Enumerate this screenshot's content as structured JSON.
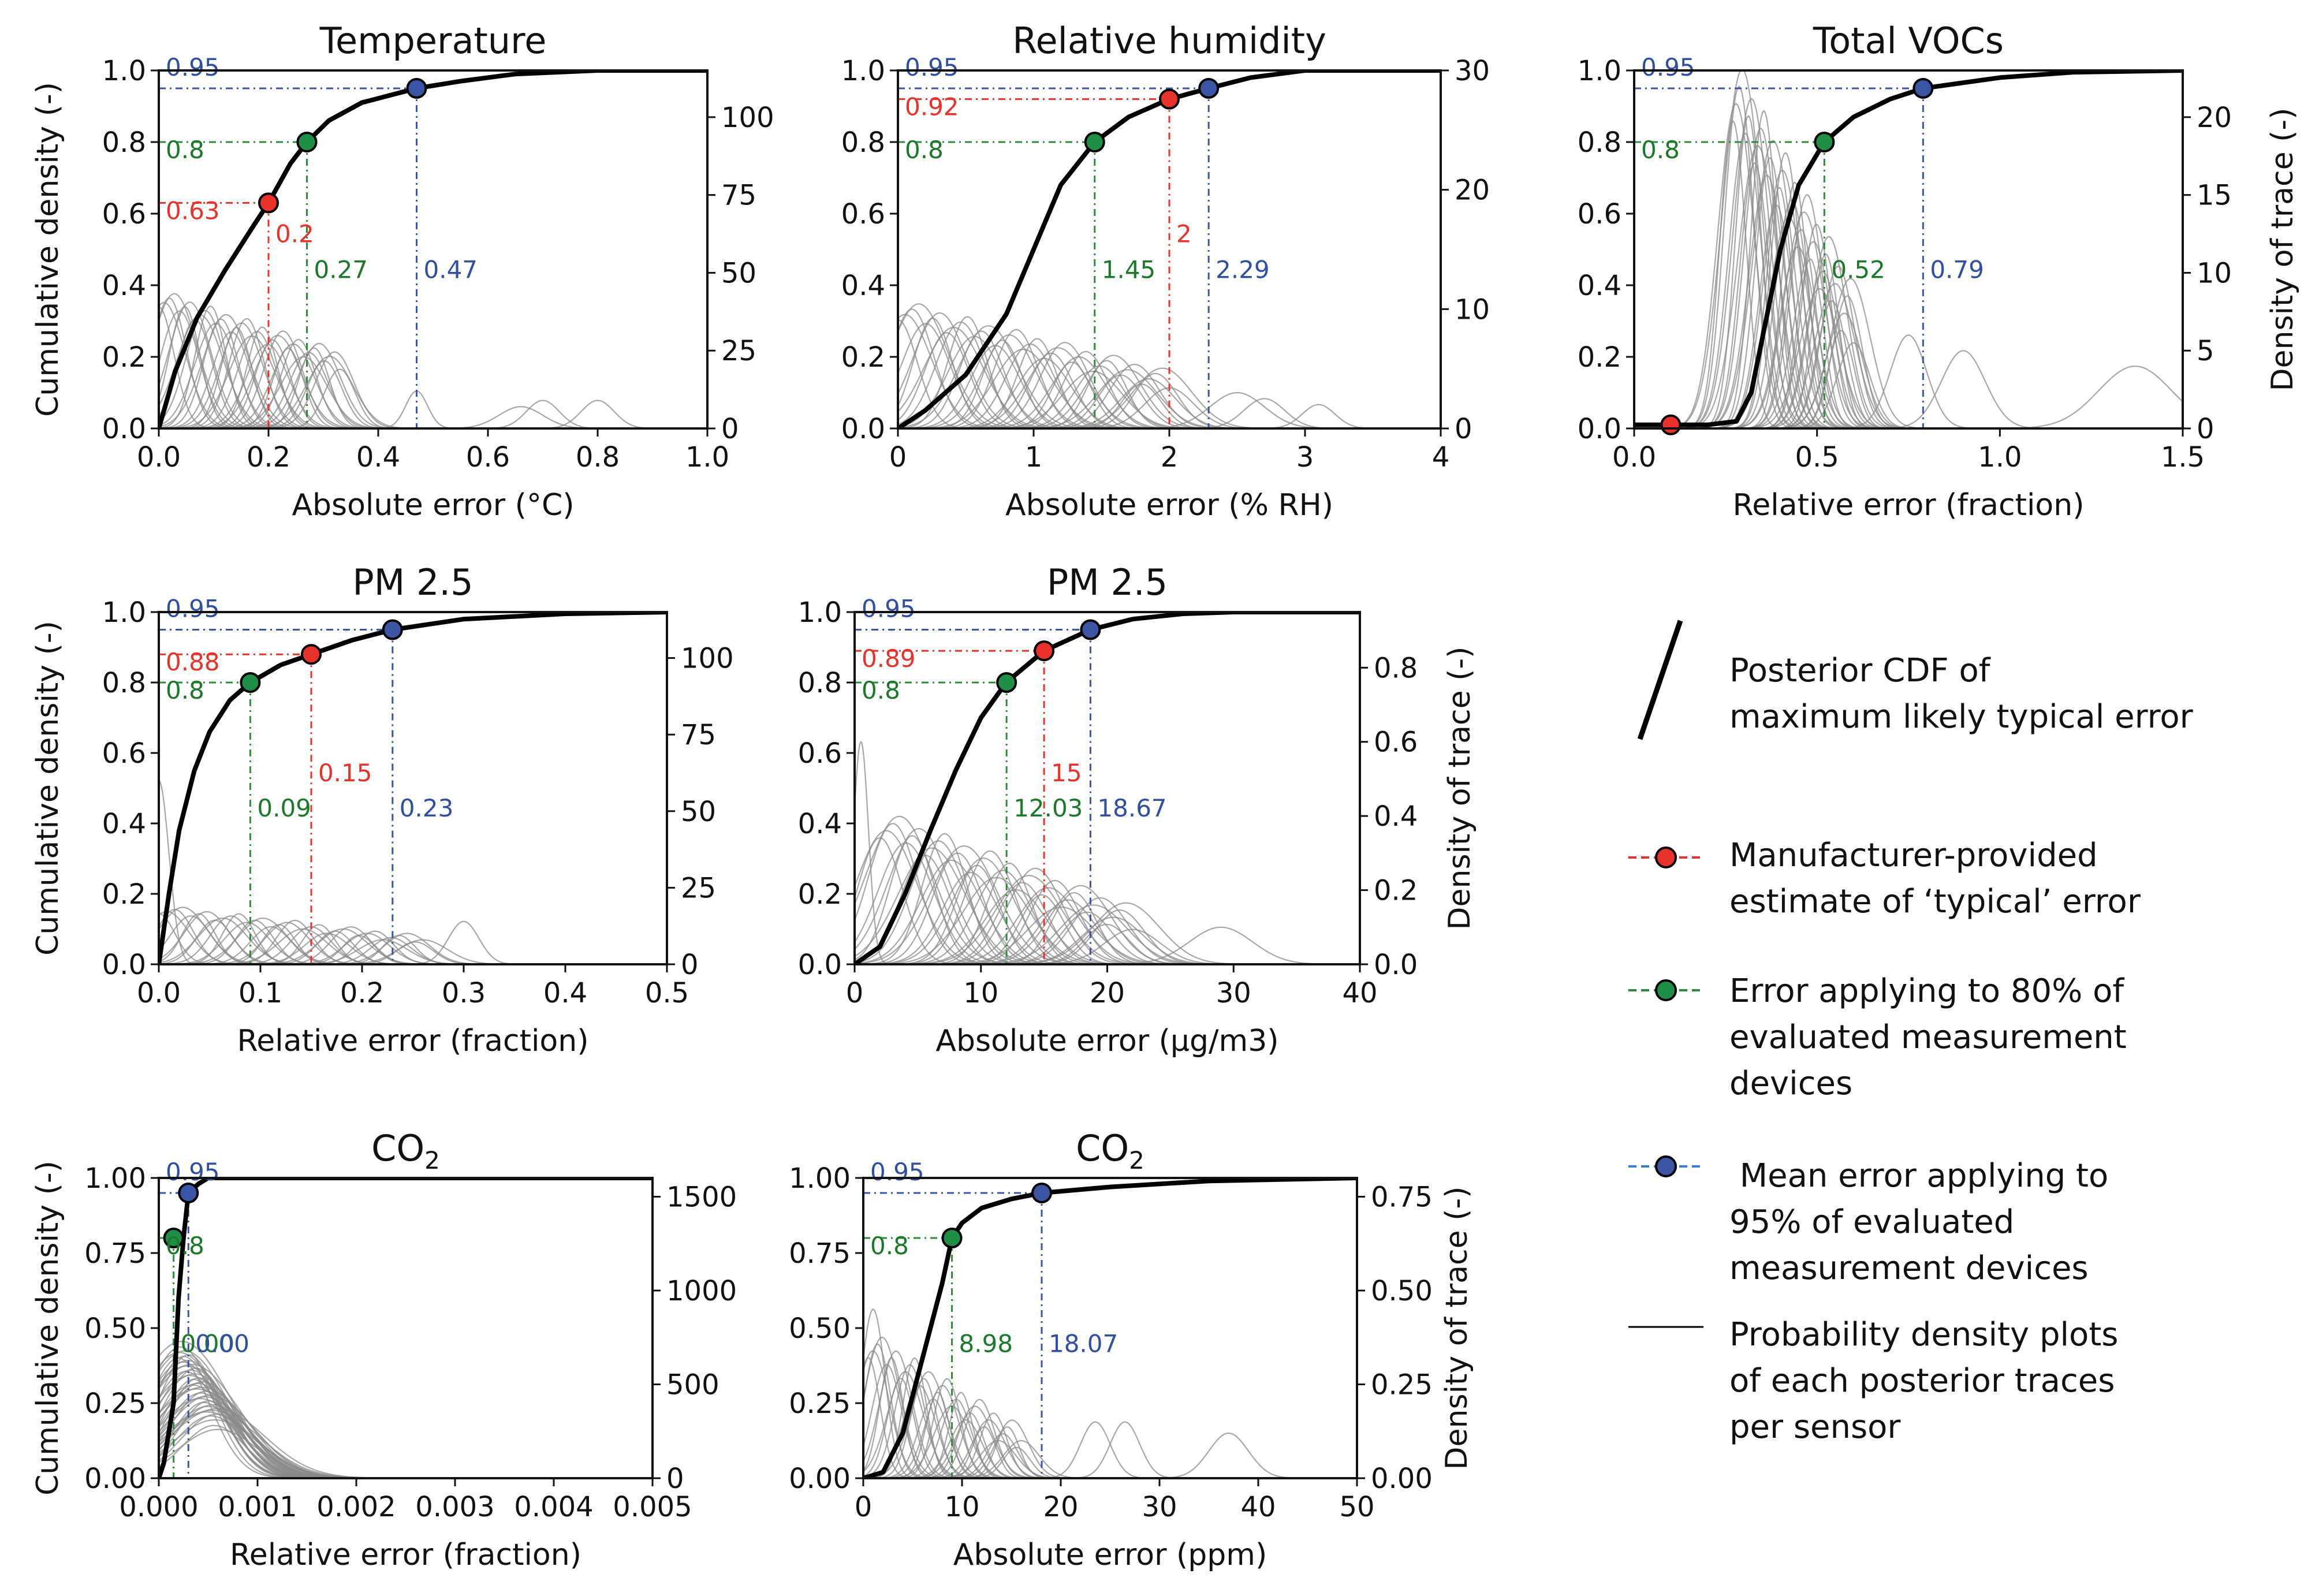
{
  "colors": {
    "manufacturer": "#e8322a",
    "green": "#2e8b3c",
    "blue": "#3a55a4",
    "cdf": "#000000",
    "trace": "#8a8a8a",
    "green_text": "#1a7a2a",
    "blue_text": "#2f4fa0",
    "red_text": "#e8322a"
  },
  "legend": {
    "cdf": "Posterior CDF of maximum likely typical error",
    "cdf_lines": [
      "Posterior CDF of",
      "maximum likely typical error"
    ],
    "manufacturer_lines": [
      "Manufacturer-provided",
      "estimate of ‘typical’ error"
    ],
    "green_lines": [
      "Error applying to 80% of",
      "evaluated measurement",
      "devices"
    ],
    "blue_lines": [
      " Mean error applying to",
      "95% of evaluated",
      "measurement devices"
    ],
    "trace_lines": [
      "Probability density plots",
      "of each posterior traces",
      "per sensor"
    ]
  },
  "chart_data": [
    {
      "type": "line",
      "title": "Temperature",
      "xlabel": "Absolute error (°C)",
      "ylabel": "Cumulative density (-)",
      "y2label": "",
      "xlim": [
        0,
        1.0
      ],
      "ylim": [
        0,
        1.0
      ],
      "y2lim": [
        0,
        115
      ],
      "xticks": [
        "0.0",
        "0.2",
        "0.4",
        "0.6",
        "0.8",
        "1.0"
      ],
      "yticks": [
        "0.0",
        "0.2",
        "0.4",
        "0.6",
        "0.8",
        "1.0"
      ],
      "y2ticks": [
        "0",
        "25",
        "50",
        "75",
        "100"
      ],
      "y2tickvals": [
        0,
        25,
        50,
        75,
        100
      ],
      "cdf": {
        "x": [
          0,
          0.03,
          0.07,
          0.12,
          0.17,
          0.2,
          0.24,
          0.27,
          0.31,
          0.37,
          0.42,
          0.47,
          0.55,
          0.65,
          0.8,
          1.0
        ],
        "y": [
          0,
          0.16,
          0.31,
          0.44,
          0.56,
          0.63,
          0.74,
          0.8,
          0.86,
          0.91,
          0.93,
          0.95,
          0.97,
          0.99,
          1.0,
          1.0
        ]
      },
      "markers": [
        {
          "kind": "manufacturer",
          "x": 0.2,
          "y": 0.63,
          "label_y": "0.63",
          "label_x": "0.2"
        },
        {
          "kind": "green",
          "x": 0.27,
          "y": 0.8,
          "label_y": "0.8",
          "label_x": "0.27"
        },
        {
          "kind": "blue",
          "x": 0.47,
          "y": 0.95,
          "label_y": "0.95",
          "label_x": "0.47"
        }
      ],
      "traces": {
        "n": 36,
        "x0": 0.0,
        "x1": 0.33,
        "sigma": 0.035,
        "hmax": 42,
        "hmin": 22
      },
      "extra_traces": [
        [
          0.47,
          12,
          0.02
        ],
        [
          0.66,
          7,
          0.04
        ],
        [
          0.7,
          9,
          0.03
        ],
        [
          0.8,
          9,
          0.03
        ]
      ]
    },
    {
      "type": "line",
      "title": "Relative humidity",
      "xlabel": "Absolute error (% RH)",
      "ylabel": "",
      "y2label": "",
      "xlim": [
        0,
        4
      ],
      "ylim": [
        0,
        1.0
      ],
      "y2lim": [
        0,
        30
      ],
      "xticks": [
        "0",
        "1",
        "2",
        "3",
        "4"
      ],
      "yticks": [
        "0.0",
        "0.2",
        "0.4",
        "0.6",
        "0.8",
        "1.0"
      ],
      "y2ticks": [
        "0",
        "10",
        "20",
        "30"
      ],
      "y2tickvals": [
        0,
        10,
        20,
        30
      ],
      "cdf": {
        "x": [
          0,
          0.2,
          0.5,
          0.8,
          1.0,
          1.2,
          1.45,
          1.7,
          2.0,
          2.29,
          2.6,
          3.0,
          4.0
        ],
        "y": [
          0,
          0.05,
          0.15,
          0.32,
          0.5,
          0.68,
          0.8,
          0.87,
          0.92,
          0.95,
          0.98,
          1.0,
          1.0
        ]
      },
      "markers": [
        {
          "kind": "manufacturer",
          "x": 2.0,
          "y": 0.92,
          "label_y": "0.92",
          "label_x": "2"
        },
        {
          "kind": "green",
          "x": 1.45,
          "y": 0.8,
          "label_y": "0.8",
          "label_x": "1.45"
        },
        {
          "kind": "blue",
          "x": 2.29,
          "y": 0.95,
          "label_y": "0.95",
          "label_x": "2.29"
        }
      ],
      "traces": {
        "n": 40,
        "x0": 0.0,
        "x1": 2.0,
        "sigma": 0.18,
        "hmax": 10,
        "hmin": 4
      },
      "extra_traces": [
        [
          2.5,
          3,
          0.2
        ],
        [
          2.7,
          2.5,
          0.15
        ],
        [
          3.1,
          2,
          0.12
        ]
      ]
    },
    {
      "type": "line",
      "title": "Total VOCs",
      "xlabel": "Relative error (fraction)",
      "ylabel": "",
      "y2label": "Density of trace (-)",
      "xlim": [
        0,
        1.5
      ],
      "ylim": [
        0,
        1.0
      ],
      "y2lim": [
        0,
        23
      ],
      "xticks": [
        "0.0",
        "0.5",
        "1.0",
        "1.5"
      ],
      "yticks": [
        "0.0",
        "0.2",
        "0.4",
        "0.6",
        "0.8",
        "1.0"
      ],
      "y2ticks": [
        "0",
        "5",
        "10",
        "15",
        "20"
      ],
      "y2tickvals": [
        0,
        5,
        10,
        15,
        20
      ],
      "cdf": {
        "x": [
          0,
          0.2,
          0.28,
          0.32,
          0.36,
          0.4,
          0.45,
          0.52,
          0.6,
          0.7,
          0.79,
          1.0,
          1.2,
          1.5
        ],
        "y": [
          0.01,
          0.01,
          0.02,
          0.1,
          0.3,
          0.5,
          0.68,
          0.8,
          0.87,
          0.92,
          0.95,
          0.98,
          0.995,
          1.0
        ]
      },
      "markers": [
        {
          "kind": "manufacturer",
          "x": 0.1,
          "y": 0.01,
          "label_y": "",
          "label_x": ""
        },
        {
          "kind": "green",
          "x": 0.52,
          "y": 0.8,
          "label_y": "0.8",
          "label_x": "0.52"
        },
        {
          "kind": "blue",
          "x": 0.79,
          "y": 0.95,
          "label_y": "0.95",
          "label_x": "0.79"
        }
      ],
      "traces": {
        "n": 40,
        "x0": 0.27,
        "x1": 0.6,
        "sigma": 0.045,
        "hmax": 22,
        "hmin": 7
      },
      "extra_traces": [
        [
          0.75,
          6,
          0.05
        ],
        [
          0.9,
          5,
          0.06
        ],
        [
          1.37,
          4,
          0.1
        ]
      ]
    },
    {
      "type": "line",
      "title": "PM 2.5",
      "xlabel": "Relative error (fraction)",
      "ylabel": "Cumulative density (-)",
      "y2label": "",
      "xlim": [
        0,
        0.5
      ],
      "ylim": [
        0,
        1.0
      ],
      "y2lim": [
        0,
        115
      ],
      "xticks": [
        "0.0",
        "0.1",
        "0.2",
        "0.3",
        "0.4",
        "0.5"
      ],
      "yticks": [
        "0.0",
        "0.2",
        "0.4",
        "0.6",
        "0.8",
        "1.0"
      ],
      "y2ticks": [
        "0",
        "25",
        "50",
        "75",
        "100"
      ],
      "y2tickvals": [
        0,
        25,
        50,
        75,
        100
      ],
      "cdf": {
        "x": [
          0,
          0.01,
          0.02,
          0.035,
          0.05,
          0.07,
          0.09,
          0.12,
          0.15,
          0.19,
          0.23,
          0.3,
          0.4,
          0.5
        ],
        "y": [
          0,
          0.2,
          0.38,
          0.55,
          0.66,
          0.75,
          0.8,
          0.85,
          0.88,
          0.92,
          0.95,
          0.98,
          0.995,
          1.0
        ]
      },
      "markers": [
        {
          "kind": "manufacturer",
          "x": 0.15,
          "y": 0.88,
          "label_y": "0.88",
          "label_x": "0.15"
        },
        {
          "kind": "green",
          "x": 0.09,
          "y": 0.8,
          "label_y": "0.8",
          "label_x": "0.09"
        },
        {
          "kind": "blue",
          "x": 0.23,
          "y": 0.95,
          "label_y": "0.95",
          "label_x": "0.23"
        }
      ],
      "traces": {
        "n": 34,
        "x0": 0.0,
        "x1": 0.26,
        "sigma": 0.02,
        "hmax": 18,
        "hmin": 8
      },
      "extra_traces": [
        [
          0.0,
          60,
          0.01
        ],
        [
          0.3,
          14,
          0.015
        ]
      ]
    },
    {
      "type": "line",
      "title": "PM 2.5",
      "xlabel": "Absolute error (μg/m3)",
      "ylabel": "",
      "y2label": "Density of trace (-)",
      "xlim": [
        0,
        40
      ],
      "ylim": [
        0,
        1.0
      ],
      "y2lim": [
        0,
        0.95
      ],
      "xticks": [
        "0",
        "10",
        "20",
        "30",
        "40"
      ],
      "yticks": [
        "0.0",
        "0.2",
        "0.4",
        "0.6",
        "0.8",
        "1.0"
      ],
      "y2ticks": [
        "0.0",
        "0.2",
        "0.4",
        "0.6",
        "0.8"
      ],
      "y2tickvals": [
        0,
        0.2,
        0.4,
        0.6,
        0.8
      ],
      "cdf": {
        "x": [
          0,
          2,
          4,
          6,
          8,
          10,
          12,
          15,
          18.67,
          22,
          26,
          30,
          40
        ],
        "y": [
          0,
          0.05,
          0.2,
          0.38,
          0.55,
          0.7,
          0.8,
          0.89,
          0.95,
          0.98,
          0.995,
          1.0,
          1.0
        ]
      },
      "markers": [
        {
          "kind": "manufacturer",
          "x": 15,
          "y": 0.89,
          "label_y": "0.89",
          "label_x": "15"
        },
        {
          "kind": "green",
          "x": 12.03,
          "y": 0.8,
          "label_y": "0.8",
          "label_x": "12.03"
        },
        {
          "kind": "blue",
          "x": 18.67,
          "y": 0.95,
          "label_y": "0.95",
          "label_x": "18.67"
        }
      ],
      "traces": {
        "n": 40,
        "x0": 2,
        "x1": 22,
        "sigma": 2.2,
        "hmax": 0.38,
        "hmin": 0.12
      },
      "extra_traces": [
        [
          0.5,
          0.6,
          0.6
        ],
        [
          29,
          0.1,
          2.5
        ]
      ]
    },
    {
      "type": "line",
      "title": "CO2",
      "xlabel": "Relative error (fraction)",
      "ylabel": "Cumulative density (-)",
      "y2label": "",
      "xlim": [
        0,
        0.005
      ],
      "ylim": [
        0,
        1.0
      ],
      "y2lim": [
        0,
        1600
      ],
      "xticks": [
        "0.000",
        "0.001",
        "0.002",
        "0.003",
        "0.004",
        "0.005"
      ],
      "yticks": [
        "0.00",
        "0.25",
        "0.50",
        "0.75",
        "1.00"
      ],
      "y2ticks": [
        "0",
        "500",
        "1000",
        "1500"
      ],
      "y2tickvals": [
        0,
        500,
        1000,
        1500
      ],
      "cdf": {
        "x": [
          0,
          5e-05,
          0.0001,
          0.00015,
          0.0002,
          0.00025,
          0.0003,
          0.0004,
          0.0005,
          0.001,
          0.005
        ],
        "y": [
          0,
          0.05,
          0.15,
          0.25,
          0.6,
          0.8,
          0.95,
          0.98,
          1.0,
          1.0,
          1.0
        ]
      },
      "markers": [
        {
          "kind": "green",
          "x": 0.00015,
          "y": 0.8,
          "label_y": "0.8",
          "label_x": "0.00"
        },
        {
          "kind": "blue",
          "x": 0.0003,
          "y": 0.95,
          "label_y": "0.95",
          "label_x": "0.00"
        }
      ],
      "traces": {
        "n": 40,
        "x0": 0.0002,
        "x1": 0.0006,
        "sigma": 0.0004,
        "hmax": 700,
        "hmin": 300
      },
      "extra_traces": []
    },
    {
      "type": "line",
      "title": "CO2",
      "xlabel": "Absolute error (ppm)",
      "ylabel": "",
      "y2label": "Density of trace (-)",
      "xlim": [
        0,
        50
      ],
      "ylim": [
        0,
        1.0
      ],
      "y2lim": [
        0,
        0.8
      ],
      "xticks": [
        "0",
        "10",
        "20",
        "30",
        "40",
        "50"
      ],
      "yticks": [
        "0.00",
        "0.25",
        "0.50",
        "0.75",
        "1.00"
      ],
      "y2ticks": [
        "0.00",
        "0.25",
        "0.50",
        "0.75"
      ],
      "y2tickvals": [
        0,
        0.25,
        0.5,
        0.75
      ],
      "cdf": {
        "x": [
          0,
          2,
          4,
          6,
          8,
          8.98,
          10,
          12,
          15,
          18.07,
          25,
          35,
          50
        ],
        "y": [
          0,
          0.02,
          0.15,
          0.4,
          0.65,
          0.8,
          0.85,
          0.9,
          0.93,
          0.95,
          0.97,
          0.99,
          1.0
        ]
      },
      "markers": [
        {
          "kind": "green",
          "x": 8.98,
          "y": 0.8,
          "label_y": "0.8",
          "label_x": "8.98"
        },
        {
          "kind": "blue",
          "x": 18.07,
          "y": 0.95,
          "label_y": "0.95",
          "label_x": "18.07"
        }
      ],
      "traces": {
        "n": 34,
        "x0": 0.5,
        "x1": 16,
        "sigma": 1.5,
        "hmax": 0.36,
        "hmin": 0.1
      },
      "extra_traces": [
        [
          1,
          0.45,
          1.2
        ],
        [
          23.5,
          0.15,
          1.5
        ],
        [
          26.5,
          0.15,
          1.5
        ],
        [
          37,
          0.12,
          2
        ]
      ]
    }
  ]
}
